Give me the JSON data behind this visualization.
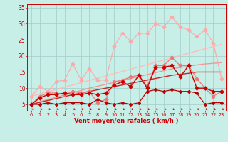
{
  "bg_color": "#c8eee8",
  "grid_color": "#a0ccc8",
  "line_color_dark": "#cc0000",
  "xlabel": "Vent moyen/en rafales ( km/h )",
  "xlim": [
    -0.5,
    23.5
  ],
  "ylim": [
    3,
    36
  ],
  "yticks": [
    5,
    10,
    15,
    20,
    25,
    30,
    35
  ],
  "xticks": [
    0,
    1,
    2,
    3,
    4,
    5,
    6,
    7,
    8,
    9,
    10,
    11,
    12,
    13,
    14,
    15,
    16,
    17,
    18,
    19,
    20,
    21,
    22,
    23
  ],
  "series": [
    {
      "color": "#ffaaaa",
      "lw": 0.9,
      "marker": "D",
      "ms": 2.5,
      "values": [
        7.5,
        10.5,
        9.0,
        12.0,
        12.5,
        17.5,
        12.5,
        16.0,
        12.5,
        12.5,
        23.0,
        27.0,
        24.5,
        27.0,
        27.0,
        30.0,
        29.0,
        32.0,
        29.0,
        28.0,
        26.0,
        28.0,
        24.0,
        13.0
      ]
    },
    {
      "color": "#ffbbbb",
      "lw": 1.0,
      "marker": null,
      "ms": 0,
      "values": [
        7.5,
        8.2,
        8.9,
        9.6,
        10.3,
        11.0,
        11.7,
        12.4,
        13.1,
        13.8,
        14.5,
        15.2,
        15.9,
        16.6,
        17.3,
        18.0,
        18.7,
        19.4,
        20.1,
        20.8,
        21.5,
        22.2,
        22.9,
        23.6
      ]
    },
    {
      "color": "#ee7777",
      "lw": 0.9,
      "marker": "D",
      "ms": 2.5,
      "values": [
        5.0,
        7.5,
        8.5,
        8.5,
        8.0,
        9.0,
        8.5,
        9.0,
        5.5,
        6.5,
        12.0,
        12.5,
        13.5,
        14.0,
        10.5,
        17.0,
        17.0,
        19.5,
        17.0,
        17.0,
        13.0,
        10.0,
        7.5,
        9.0
      ]
    },
    {
      "color": "#ee9999",
      "lw": 1.0,
      "marker": null,
      "ms": 0,
      "values": [
        5.0,
        5.8,
        6.5,
        7.2,
        7.9,
        8.6,
        9.3,
        10.0,
        10.6,
        11.2,
        11.8,
        12.4,
        13.0,
        13.6,
        14.2,
        14.8,
        15.4,
        16.0,
        16.4,
        16.8,
        17.2,
        17.5,
        17.7,
        17.9
      ]
    },
    {
      "color": "#cc0000",
      "lw": 1.0,
      "marker": "D",
      "ms": 2.5,
      "values": [
        5.0,
        7.0,
        8.0,
        8.0,
        8.5,
        8.0,
        8.0,
        8.5,
        8.0,
        8.5,
        11.0,
        12.0,
        10.5,
        14.0,
        10.0,
        16.5,
        16.5,
        17.0,
        13.5,
        17.0,
        10.0,
        10.0,
        9.0,
        9.0
      ]
    },
    {
      "color": "#cc2222",
      "lw": 1.0,
      "marker": null,
      "ms": 0,
      "values": [
        5.0,
        5.6,
        6.2,
        6.8,
        7.4,
        8.0,
        8.5,
        9.0,
        9.5,
        10.0,
        10.5,
        11.0,
        11.5,
        12.0,
        12.5,
        13.0,
        13.5,
        14.0,
        14.3,
        14.6,
        15.0,
        15.0,
        15.0,
        15.0
      ]
    },
    {
      "color": "#bb0000",
      "lw": 0.9,
      "marker": "D",
      "ms": 2.0,
      "values": [
        5.0,
        5.0,
        5.5,
        5.0,
        5.5,
        5.5,
        5.5,
        5.0,
        6.5,
        5.5,
        5.0,
        5.5,
        5.0,
        5.5,
        9.0,
        9.5,
        9.0,
        9.5,
        9.0,
        9.0,
        8.5,
        5.0,
        5.5,
        5.5
      ]
    }
  ]
}
